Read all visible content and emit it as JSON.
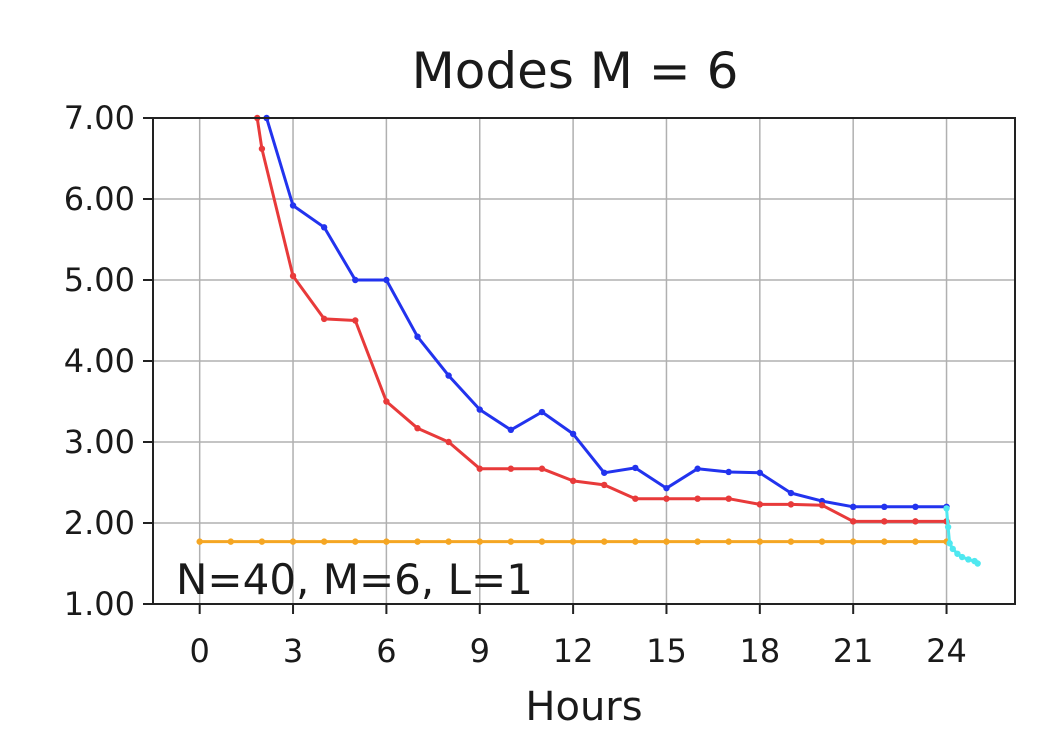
{
  "chart_data": {
    "type": "line",
    "title": "Modes M = 6",
    "xlabel": "Hours",
    "ylabel": "",
    "annotation": "N=40, M=6, L=1",
    "xlim": [
      -1.5,
      26.2
    ],
    "ylim": [
      1.0,
      7.0
    ],
    "xticks": [
      0,
      3,
      6,
      9,
      12,
      15,
      18,
      21,
      24
    ],
    "yticks": [
      1,
      2,
      3,
      4,
      5,
      6,
      7
    ],
    "ytick_labels": [
      "1.00",
      "2.00",
      "3.00",
      "4.00",
      "5.00",
      "6.00",
      "7.00"
    ],
    "grid": true,
    "series": [
      {
        "color": "#2233ee",
        "x": [
          2.15,
          3,
          4,
          5,
          6,
          7,
          8,
          9,
          10,
          11,
          12,
          13,
          14,
          15,
          16,
          17,
          18,
          19,
          20,
          21,
          22,
          23,
          24
        ],
        "y": [
          7.0,
          5.92,
          5.65,
          5.0,
          5.0,
          4.3,
          3.82,
          3.4,
          3.15,
          3.37,
          3.1,
          2.62,
          2.68,
          2.43,
          2.67,
          2.63,
          2.62,
          2.37,
          2.27,
          2.2,
          2.2,
          2.2,
          2.2
        ]
      },
      {
        "color": "#e83a3a",
        "x": [
          1.85,
          2,
          3,
          4,
          5,
          6,
          7,
          8,
          9,
          10,
          11,
          12,
          13,
          14,
          15,
          16,
          17,
          18,
          19,
          20,
          21,
          22,
          23,
          24
        ],
        "y": [
          7.0,
          6.62,
          5.05,
          4.52,
          4.5,
          3.5,
          3.17,
          3.0,
          2.67,
          2.67,
          2.67,
          2.52,
          2.47,
          2.3,
          2.3,
          2.3,
          2.3,
          2.23,
          2.23,
          2.22,
          2.02,
          2.02,
          2.02,
          2.02
        ]
      },
      {
        "color": "#f5a623",
        "x": [
          0,
          1,
          2,
          3,
          4,
          5,
          6,
          7,
          8,
          9,
          10,
          11,
          12,
          13,
          14,
          15,
          16,
          17,
          18,
          19,
          20,
          21,
          22,
          23,
          24
        ],
        "y": [
          1.77,
          1.77,
          1.77,
          1.77,
          1.77,
          1.77,
          1.77,
          1.77,
          1.77,
          1.77,
          1.77,
          1.77,
          1.77,
          1.77,
          1.77,
          1.77,
          1.77,
          1.77,
          1.77,
          1.77,
          1.77,
          1.77,
          1.77,
          1.77,
          1.77
        ]
      },
      {
        "color": "#4fe8f0",
        "x": [
          24,
          24.05,
          24.1,
          24.2,
          24.35,
          24.5,
          24.7,
          24.9,
          25.0
        ],
        "y": [
          2.18,
          1.95,
          1.75,
          1.68,
          1.62,
          1.58,
          1.55,
          1.53,
          1.5
        ]
      }
    ]
  }
}
